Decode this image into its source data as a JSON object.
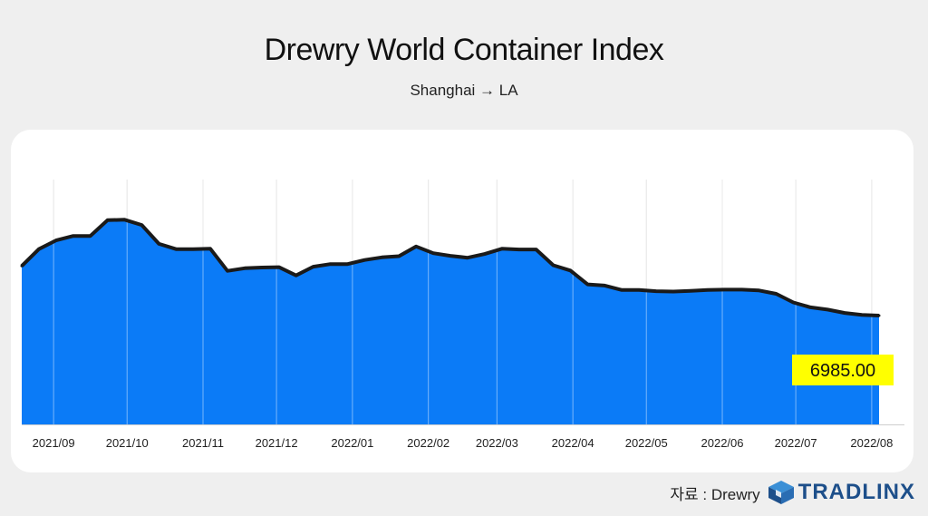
{
  "title": "Drewry World Container Index",
  "subtitle": "Shanghai → LA",
  "source_label": "자료 : Drewry",
  "brand": {
    "name": "TRADLINX",
    "icon": "tradlinx-cube-logo",
    "color": "#1d4f8a"
  },
  "colors": {
    "area_fill": "#0b7bf7",
    "line": "#1a1a1a",
    "label_bg": "#ffff00",
    "grid": "#d8d8d8"
  },
  "chart_data": {
    "type": "area",
    "title": "Drewry World Container Index",
    "subtitle": "Shanghai → LA",
    "xlabel": "",
    "ylabel": "",
    "grid": true,
    "x": [
      "2021-08-19",
      "2021-08-26",
      "2021-09-02",
      "2021-09-09",
      "2021-09-16",
      "2021-09-23",
      "2021-09-30",
      "2021-10-07",
      "2021-10-14",
      "2021-10-21",
      "2021-10-28",
      "2021-11-04",
      "2021-11-11",
      "2021-11-18",
      "2021-11-25",
      "2021-12-02",
      "2021-12-09",
      "2021-12-16",
      "2021-12-23",
      "2021-12-30",
      "2022-01-06",
      "2022-01-13",
      "2022-01-20",
      "2022-01-27",
      "2022-02-03",
      "2022-02-10",
      "2022-02-17",
      "2022-02-24",
      "2022-03-03",
      "2022-03-10",
      "2022-03-17",
      "2022-03-24",
      "2022-03-31",
      "2022-04-07",
      "2022-04-14",
      "2022-04-21",
      "2022-04-28",
      "2022-05-05",
      "2022-05-12",
      "2022-05-19",
      "2022-05-26",
      "2022-06-02",
      "2022-06-09",
      "2022-06-16",
      "2022-06-23",
      "2022-06-30",
      "2022-07-07",
      "2022-07-14",
      "2022-07-21",
      "2022-07-28",
      "2022-08-04"
    ],
    "values": [
      11200,
      11650,
      11880,
      12000,
      12000,
      12420,
      12430,
      12290,
      11790,
      11650,
      11650,
      11660,
      11070,
      11140,
      11160,
      11170,
      10950,
      11180,
      11250,
      11250,
      11360,
      11430,
      11460,
      11720,
      11540,
      11470,
      11420,
      11520,
      11660,
      11640,
      11640,
      11220,
      11080,
      10710,
      10680,
      10560,
      10560,
      10530,
      10520,
      10540,
      10560,
      10570,
      10570,
      10550,
      10460,
      10230,
      10100,
      10040,
      9950,
      9900,
      9880
    ],
    "ylim": [
      6985,
      13500
    ],
    "x_tick_labels": [
      "2021/09",
      "2021/10",
      "2021/11",
      "2021/12",
      "2022/01",
      "2022/02",
      "2022/03",
      "2022/04",
      "2022/05",
      "2022/06",
      "2022/07",
      "2022/08"
    ],
    "x_ticks": [
      "2021-09-01",
      "2021-10-01",
      "2021-11-01",
      "2021-12-01",
      "2022-01-01",
      "2022-02-01",
      "2022-03-01",
      "2022-04-01",
      "2022-05-01",
      "2022-06-01",
      "2022-07-01",
      "2022-08-01"
    ],
    "annotations": [
      {
        "text": "6985.00"
      }
    ]
  }
}
